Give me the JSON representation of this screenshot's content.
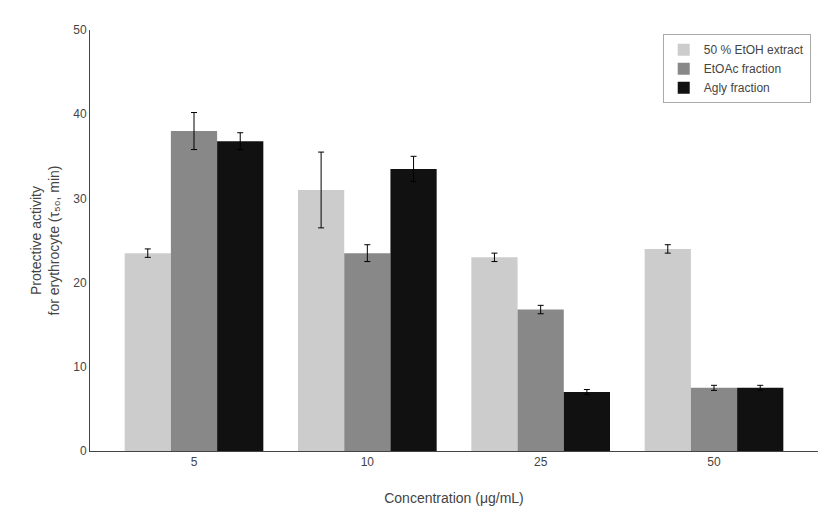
{
  "chart_data": {
    "type": "bar",
    "categories": [
      "5",
      "10",
      "25",
      "50"
    ],
    "series": [
      {
        "name": "50 % EtOH extract",
        "color": "#cccccc",
        "values": [
          23.5,
          31.0,
          23.0,
          24.0
        ],
        "errors": [
          0.5,
          4.5,
          0.5,
          0.5
        ]
      },
      {
        "name": "EtOAc fraction",
        "color": "#888888",
        "values": [
          38.0,
          23.5,
          16.8,
          7.5
        ],
        "errors": [
          2.2,
          1.0,
          0.5,
          0.3
        ]
      },
      {
        "name": "Agly fraction",
        "color": "#111111",
        "values": [
          36.8,
          33.5,
          7.0,
          7.5
        ],
        "errors": [
          1.0,
          1.5,
          0.3,
          0.3
        ]
      }
    ],
    "xlabel": "Concentration (μg/mL)",
    "ylabel": "Protective activity\nfor erythrocyte (τ₅₀, min)",
    "ylim": [
      0,
      50
    ],
    "yticks": [
      0,
      10,
      20,
      30,
      40,
      50
    ],
    "grid": false,
    "legend": "upper right"
  }
}
